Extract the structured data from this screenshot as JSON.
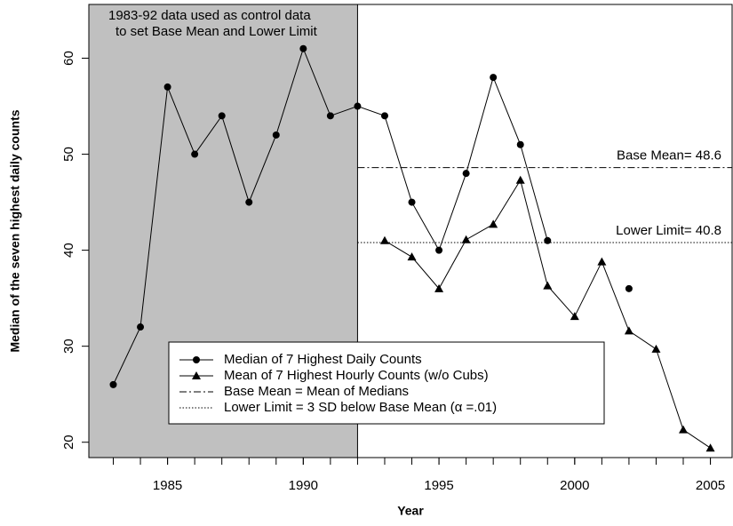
{
  "chart_data": {
    "type": "line",
    "xlabel": "Year",
    "ylabel": "Median of the seven highest daily counts",
    "annotation": "1983-92 data used as control data\nto set Base Mean and Lower Limit",
    "shade_until": 1992,
    "x": [
      1983,
      1984,
      1985,
      1986,
      1987,
      1988,
      1989,
      1990,
      1991,
      1992,
      1993,
      1994,
      1995,
      1996,
      1997,
      1998,
      1999,
      2000,
      2001,
      2002,
      2003,
      2004,
      2005
    ],
    "series": [
      {
        "name": "Median of 7 Highest Daily Counts",
        "marker": "circle",
        "color": "#000000",
        "values": [
          26,
          32,
          57,
          50,
          54,
          45,
          52,
          61,
          54,
          55,
          54,
          45,
          40,
          48,
          58,
          51,
          41,
          null,
          null,
          36,
          null,
          null,
          null
        ]
      },
      {
        "name": "Mean of 7 Highest Hourly Counts (w/o Cubs)",
        "marker": "triangle",
        "color": "#000000",
        "values": [
          null,
          null,
          null,
          null,
          null,
          null,
          null,
          null,
          null,
          null,
          41,
          39.3,
          36,
          41.1,
          42.7,
          47.3,
          36.3,
          33.1,
          38.8,
          31.6,
          29.7,
          21.3,
          19.4
        ]
      }
    ],
    "hlines": [
      {
        "value": 48.6,
        "style": "dashdot",
        "name": "Base Mean = Mean of Medians",
        "label": "Base Mean= 48.6"
      },
      {
        "value": 40.8,
        "style": "dotted",
        "name": "Lower Limit = 3 SD below Base Mean (α =.01)",
        "label": "Lower Limit= 40.8"
      }
    ],
    "xlim": [
      1982.1,
      2005.8
    ],
    "xticks": [
      1985,
      1990,
      1995,
      2000,
      2005
    ],
    "ylim": [
      18.4,
      65.6
    ],
    "yticks": [
      20,
      30,
      40,
      50,
      60
    ]
  }
}
